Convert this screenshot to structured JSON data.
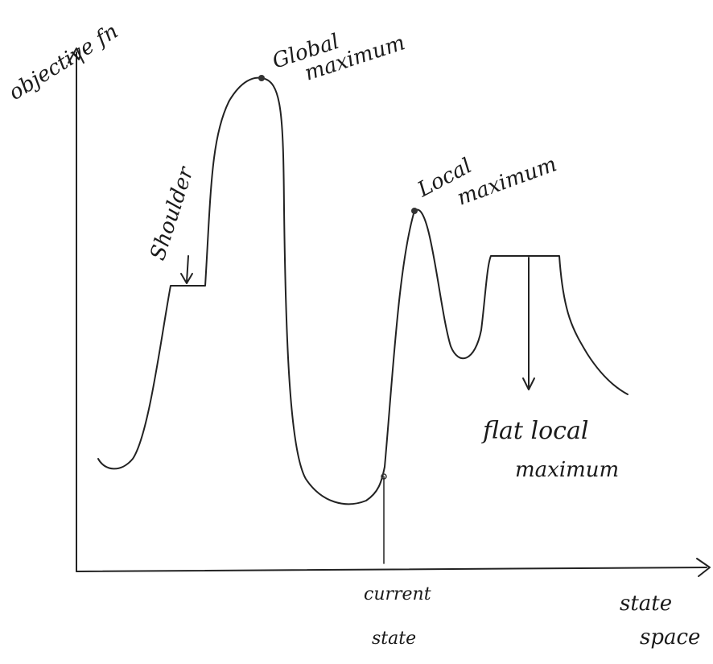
{
  "axes": {
    "y_label": "objective fn",
    "x_label": [
      "state",
      "space"
    ]
  },
  "annotations": {
    "global_max": [
      "Global",
      "maximum"
    ],
    "shoulder": "Shoulder",
    "local_max": [
      "Local",
      "maximum"
    ],
    "flat_local_max": [
      "flat local",
      "maximum"
    ],
    "current_state": [
      "current",
      "state"
    ]
  }
}
